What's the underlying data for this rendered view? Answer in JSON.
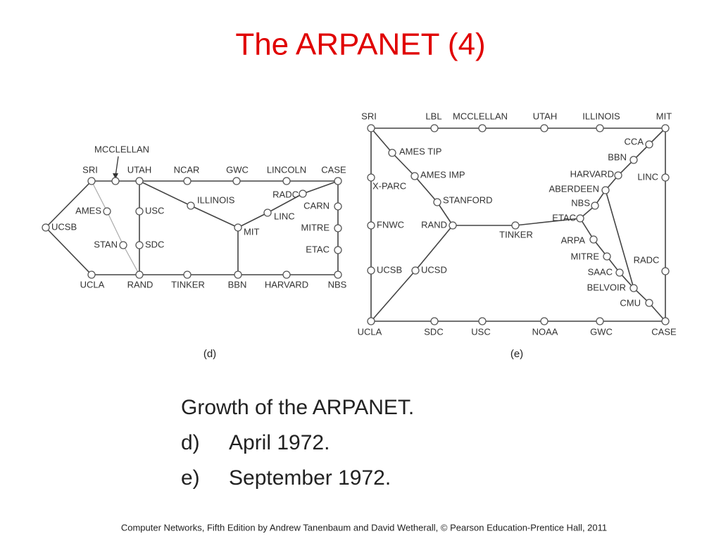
{
  "title": "The ARPANET (4)",
  "diagram_d": {
    "nodes": [
      "MCCLELLAN",
      "SRI",
      "UTAH",
      "NCAR",
      "GWC",
      "LINCOLN",
      "CASE",
      "ILLINOIS",
      "RADC",
      "CARN",
      "LINC",
      "MITRE",
      "MIT",
      "ETAC",
      "AMES",
      "USC",
      "UCSB",
      "STAN",
      "SDC",
      "UCLA",
      "RAND",
      "TINKER",
      "BBN",
      "HARVARD",
      "NBS"
    ],
    "caption": "(d)"
  },
  "diagram_e": {
    "nodes": [
      "SRI",
      "LBL",
      "MCCLELLAN",
      "UTAH",
      "ILLINOIS",
      "MIT",
      "CCA",
      "BBN",
      "HARVARD",
      "LINC",
      "ABERDEEN",
      "NBS",
      "ETAC",
      "AMES TIP",
      "AMES IMP",
      "X-PARC",
      "STANFORD",
      "FNWC",
      "RAND",
      "TINKER",
      "ARPA",
      "MITRE",
      "RADC",
      "SAAC",
      "BELVOIR",
      "CMU",
      "UCSB",
      "UCSD",
      "UCLA",
      "SDC",
      "USC",
      "NOAA",
      "GWC",
      "CASE"
    ],
    "caption": "(e)"
  },
  "description": {
    "heading": "Growth of the ARPANET.",
    "items": [
      {
        "marker": "d)",
        "text": "April 1972."
      },
      {
        "marker": "e)",
        "text": "September 1972."
      }
    ]
  },
  "footer": "Computer Networks, Fifth Edition by Andrew Tanenbaum and David Wetherall, © Pearson Education-Prentice Hall, 2011"
}
